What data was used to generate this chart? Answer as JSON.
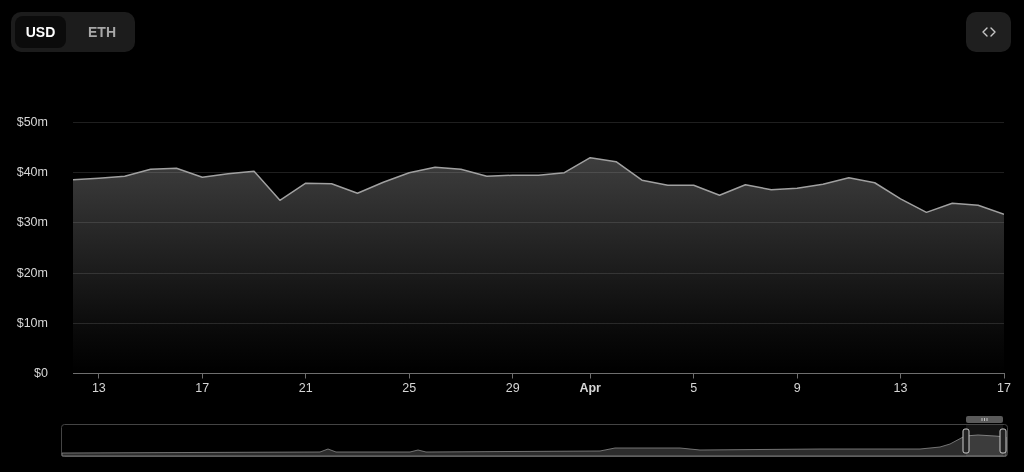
{
  "chart_data": {
    "type": "area",
    "annotations": [
      "USD",
      "ETH"
    ],
    "x": [
      "--03-12",
      "--03-13",
      "--03-14",
      "--03-15",
      "--03-16",
      "--03-17",
      "--03-18",
      "--03-19",
      "--03-20",
      "--03-21",
      "--03-22",
      "--03-23",
      "--03-24",
      "--03-25",
      "--03-26",
      "--03-27",
      "--03-28",
      "--03-29",
      "--03-30",
      "--03-31",
      "--04-01",
      "--04-02",
      "--04-03",
      "--04-04",
      "--04-05",
      "--04-06",
      "--04-07",
      "--04-08",
      "--04-09",
      "--04-10",
      "--04-11",
      "--04-12",
      "--04-13",
      "--04-14",
      "--04-15",
      "--04-16",
      "--04-17"
    ],
    "values": [
      38.6,
      38.9,
      39.3,
      40.7,
      40.9,
      39.1,
      39.8,
      40.3,
      34.5,
      37.9,
      37.8,
      35.9,
      38.1,
      40.0,
      41.1,
      40.7,
      39.3,
      39.5,
      39.5,
      40.0,
      43.0,
      42.2,
      38.5,
      37.5,
      37.5,
      35.5,
      37.6,
      36.6,
      36.9,
      37.7,
      39.0,
      38.0,
      34.8,
      32.1,
      33.9,
      33.5,
      31.7
    ],
    "color": "#a0a0a0",
    "xlim": [
      "--03-12",
      "--04-17"
    ],
    "xticks": [
      {
        "value": "--03-13",
        "label": "13"
      },
      {
        "value": "--03-17",
        "label": "17"
      },
      {
        "value": "--03-21",
        "label": "21"
      },
      {
        "value": "--03-25",
        "label": "25"
      },
      {
        "value": "--03-29",
        "label": "29"
      },
      {
        "value": "--04-01",
        "label": "Apr"
      },
      {
        "value": "--04-05",
        "label": "5"
      },
      {
        "value": "--04-09",
        "label": "9"
      },
      {
        "value": "--04-13",
        "label": "13"
      },
      {
        "value": "--04-17",
        "label": "17"
      }
    ],
    "ylim": [
      0,
      50
    ],
    "yticks": [
      {
        "value": 0,
        "label": "$0"
      },
      {
        "value": 10,
        "label": "$10m"
      },
      {
        "value": 20,
        "label": "$20m"
      },
      {
        "value": 30,
        "label": "$30m"
      },
      {
        "value": 40,
        "label": "$40m"
      },
      {
        "value": 50,
        "label": "$50m"
      }
    ],
    "grid": "y"
  }
}
